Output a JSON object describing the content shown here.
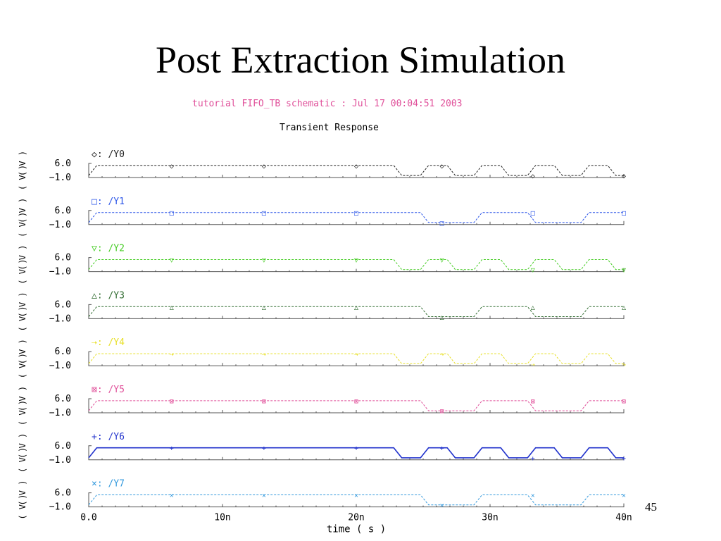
{
  "slide": {
    "title": "Post Extraction Simulation",
    "page_number": "45"
  },
  "chart_data": {
    "type": "line",
    "title": "Transient Response",
    "subtitle": "tutorial FIFO_TB schematic : Jul 17 00:04:51 2003",
    "xlabel": "time ( s )",
    "xlim": [
      0,
      40
    ],
    "x_tick_labels": [
      "0.0",
      "10n",
      "20n",
      "30n",
      "40n"
    ],
    "ylabel": "( V )",
    "ylabel_unit": "( V )",
    "ylim": [
      -1.0,
      6.0
    ],
    "y_tick_labels": [
      "6.0",
      "-1.0"
    ],
    "grid": false,
    "series": [
      {
        "name": "/Y0",
        "marker": "◇",
        "color": "#222222",
        "values": [
          [
            0,
            0
          ],
          [
            0.6,
            5
          ],
          [
            22.8,
            5
          ],
          [
            23.4,
            0
          ],
          [
            24.8,
            0
          ],
          [
            25.4,
            5
          ],
          [
            26.8,
            5
          ],
          [
            27.4,
            0
          ],
          [
            28.8,
            0
          ],
          [
            29.4,
            5
          ],
          [
            30.8,
            5
          ],
          [
            31.4,
            0
          ],
          [
            32.8,
            0
          ],
          [
            33.4,
            5
          ],
          [
            34.8,
            5
          ],
          [
            35.4,
            0
          ],
          [
            36.8,
            0
          ],
          [
            37.4,
            5
          ],
          [
            38.8,
            5
          ],
          [
            39.4,
            0
          ],
          [
            40,
            0
          ]
        ]
      },
      {
        "name": "/Y1",
        "marker": "□",
        "color": "#2b55e8",
        "values": [
          [
            0,
            0
          ],
          [
            0.6,
            5
          ],
          [
            24.8,
            5
          ],
          [
            25.4,
            0
          ],
          [
            28.8,
            0
          ],
          [
            29.4,
            5
          ],
          [
            32.8,
            5
          ],
          [
            33.4,
            0
          ],
          [
            36.8,
            0
          ],
          [
            37.4,
            5
          ],
          [
            40,
            5
          ]
        ]
      },
      {
        "name": "/Y2",
        "marker": "▽",
        "color": "#44cc22",
        "values": [
          [
            0,
            0
          ],
          [
            0.6,
            5
          ],
          [
            22.8,
            5
          ],
          [
            23.4,
            0
          ],
          [
            24.8,
            0
          ],
          [
            25.4,
            5
          ],
          [
            26.8,
            5
          ],
          [
            27.4,
            0
          ],
          [
            28.8,
            0
          ],
          [
            29.4,
            5
          ],
          [
            30.8,
            5
          ],
          [
            31.4,
            0
          ],
          [
            32.8,
            0
          ],
          [
            33.4,
            5
          ],
          [
            34.8,
            5
          ],
          [
            35.4,
            0
          ],
          [
            36.8,
            0
          ],
          [
            37.4,
            5
          ],
          [
            38.8,
            5
          ],
          [
            39.4,
            0
          ],
          [
            40,
            0
          ]
        ]
      },
      {
        "name": "/Y3",
        "marker": "△",
        "color": "#2f6b2f",
        "values": [
          [
            0,
            0
          ],
          [
            0.6,
            5
          ],
          [
            24.8,
            5
          ],
          [
            25.4,
            0
          ],
          [
            28.8,
            0
          ],
          [
            29.4,
            5
          ],
          [
            32.8,
            5
          ],
          [
            33.4,
            0
          ],
          [
            36.8,
            0
          ],
          [
            37.4,
            5
          ],
          [
            40,
            5
          ]
        ]
      },
      {
        "name": "/Y4",
        "marker": "⇢",
        "color": "#e8e02a",
        "values": [
          [
            0,
            0
          ],
          [
            0.6,
            5
          ],
          [
            22.8,
            5
          ],
          [
            23.4,
            0
          ],
          [
            24.8,
            0
          ],
          [
            25.4,
            5
          ],
          [
            26.8,
            5
          ],
          [
            27.4,
            0
          ],
          [
            28.8,
            0
          ],
          [
            29.4,
            5
          ],
          [
            30.8,
            5
          ],
          [
            31.4,
            0
          ],
          [
            32.8,
            0
          ],
          [
            33.4,
            5
          ],
          [
            34.8,
            5
          ],
          [
            35.4,
            0
          ],
          [
            36.8,
            0
          ],
          [
            37.4,
            5
          ],
          [
            38.8,
            5
          ],
          [
            39.4,
            0
          ],
          [
            40,
            0
          ]
        ]
      },
      {
        "name": "/Y5",
        "marker": "⊠",
        "color": "#e0509a",
        "values": [
          [
            0,
            0
          ],
          [
            0.6,
            5
          ],
          [
            24.8,
            5
          ],
          [
            25.4,
            0
          ],
          [
            28.8,
            0
          ],
          [
            29.4,
            5
          ],
          [
            32.8,
            5
          ],
          [
            33.4,
            0
          ],
          [
            36.8,
            0
          ],
          [
            37.4,
            5
          ],
          [
            40,
            5
          ]
        ]
      },
      {
        "name": "/Y6",
        "marker": "+",
        "color": "#2233cc",
        "values": [
          [
            0,
            0
          ],
          [
            0.6,
            5
          ],
          [
            22.8,
            5
          ],
          [
            23.4,
            0
          ],
          [
            24.8,
            0
          ],
          [
            25.4,
            5
          ],
          [
            26.8,
            5
          ],
          [
            27.4,
            0
          ],
          [
            28.8,
            0
          ],
          [
            29.4,
            5
          ],
          [
            30.8,
            5
          ],
          [
            31.4,
            0
          ],
          [
            32.8,
            0
          ],
          [
            33.4,
            5
          ],
          [
            34.8,
            5
          ],
          [
            35.4,
            0
          ],
          [
            36.8,
            0
          ],
          [
            37.4,
            5
          ],
          [
            38.8,
            5
          ],
          [
            39.4,
            0
          ],
          [
            40,
            0
          ]
        ]
      },
      {
        "name": "/Y7",
        "marker": "×",
        "color": "#3399dd",
        "values": [
          [
            0,
            0
          ],
          [
            0.6,
            5
          ],
          [
            24.8,
            5
          ],
          [
            25.4,
            0
          ],
          [
            28.8,
            0
          ],
          [
            29.4,
            5
          ],
          [
            32.8,
            5
          ],
          [
            33.4,
            0
          ],
          [
            36.8,
            0
          ],
          [
            37.4,
            5
          ],
          [
            40,
            5
          ]
        ]
      }
    ]
  }
}
